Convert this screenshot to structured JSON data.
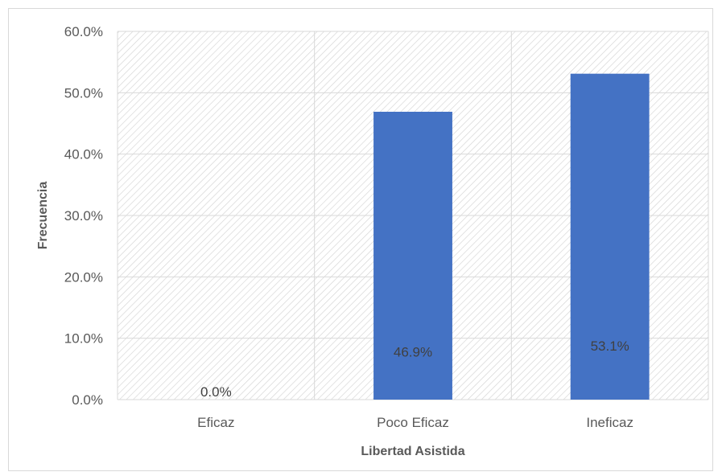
{
  "chart_data": {
    "type": "bar",
    "categories": [
      "Eficaz",
      "Poco Eficaz",
      "Ineficaz"
    ],
    "values": [
      0.0,
      46.9,
      53.1
    ],
    "data_labels": [
      "0.0%",
      "46.9%",
      "53.1%"
    ],
    "xlabel": "Libertad Asistida",
    "ylabel": "Frecuencia",
    "ylim": [
      0,
      60
    ],
    "yticks": [
      0,
      10,
      20,
      30,
      40,
      50,
      60
    ],
    "ytick_labels": [
      "0.0%",
      "10.0%",
      "20.0%",
      "30.0%",
      "40.0%",
      "50.0%",
      "60.0%"
    ],
    "grid": true,
    "plot_background": "diagonal-hatch",
    "bar_color": "#4472c4",
    "grid_color": "#d9d9d9",
    "text_color": "#595959"
  }
}
